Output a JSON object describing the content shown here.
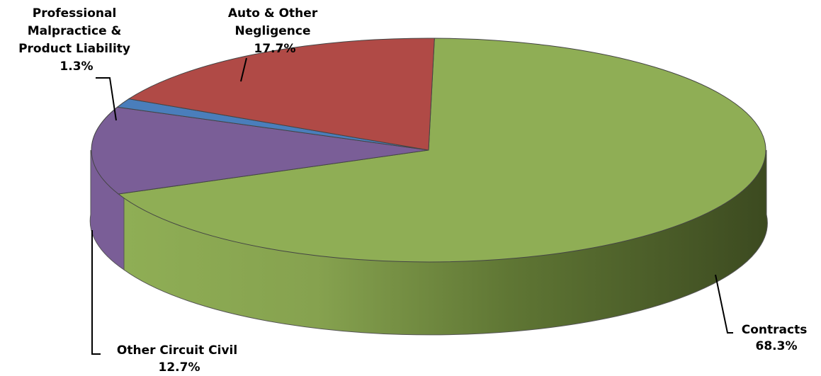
{
  "chart_data": {
    "type": "pie",
    "style": "3d",
    "slices": [
      {
        "name": "Contracts",
        "label": [
          "Contracts"
        ],
        "pct_label": "68.3%",
        "value": 68.3,
        "color": "#8FAE55",
        "side_dark": "#3C4A20"
      },
      {
        "name": "Other Circuit Civil",
        "label": [
          "Other Circuit Civil"
        ],
        "pct_label": "12.7%",
        "value": 12.7,
        "color": "#7A5E97",
        "side_dark": "#5C4575"
      },
      {
        "name": "Professional Malpractice & Product Liability",
        "label": [
          "Professional",
          "Malpractice &",
          "Product Liability"
        ],
        "pct_label": "1.3%",
        "value": 1.3,
        "color": "#4A7EBB",
        "side_dark": "#2F5A8C"
      },
      {
        "name": "Auto & Other Negligence",
        "label": [
          "Auto & Other",
          "Negligence"
        ],
        "pct_label": "17.7%",
        "value": 17.7,
        "color": "#B04A46",
        "side_dark": "#7E2F2C"
      }
    ]
  }
}
